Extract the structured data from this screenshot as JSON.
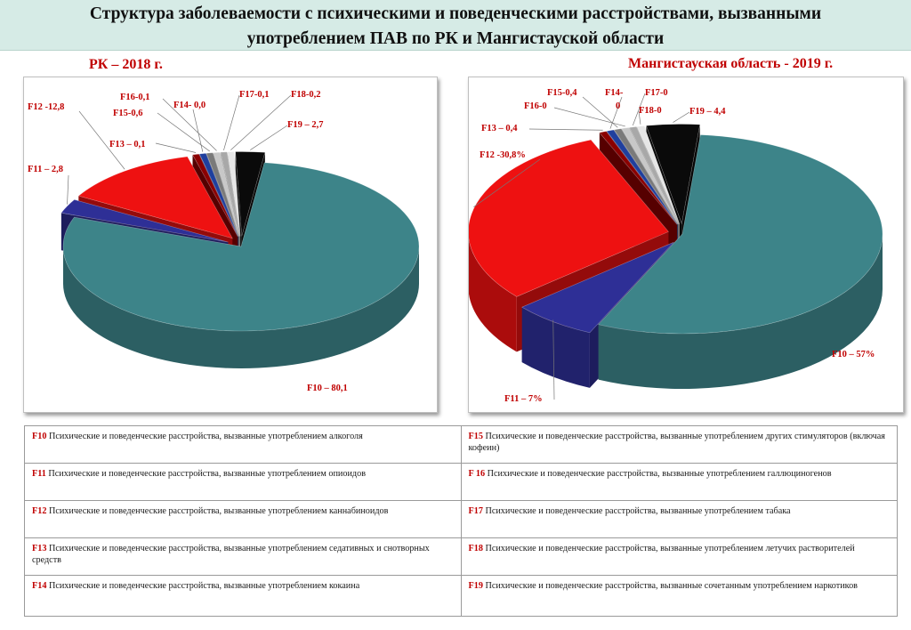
{
  "title_line1": "Структура заболеваемости с психическими и поведенческими расстройствами, вызванными",
  "title_line2": "употреблением ПАВ по РК и Мангистауской области",
  "colors": {
    "F10": "#3d8489",
    "F11": "#2e2f96",
    "F12": "#ee1111",
    "F13": "#8b0000",
    "F14": "#1f3f9e",
    "F15": "#7a7a7a",
    "F16": "#c8c8c8",
    "F17": "#a8a8a8",
    "F18": "#e6e6e6",
    "F19": "#0a0a0a"
  },
  "chart_data": [
    {
      "type": "pie",
      "title": "РК – 2018 г.",
      "categories": [
        "F10",
        "F11",
        "F12",
        "F13",
        "F14",
        "F15",
        "F16",
        "F17",
        "F18",
        "F19"
      ],
      "values": [
        80.1,
        2.8,
        12.8,
        0.1,
        0.0,
        0.6,
        0.1,
        0.1,
        0.2,
        2.7
      ],
      "labels": [
        "F10 – 80,1",
        "F11 – 2,8",
        "F12 -12,8",
        "F13 – 0,1",
        "F14- 0,0",
        "F15-0,6",
        "F16-0,1",
        "F17-0,1",
        "F18-0,2",
        "F19 – 2,7"
      ],
      "exploded": [
        "F11",
        "F12",
        "F13",
        "F14",
        "F15",
        "F16",
        "F17",
        "F18",
        "F19"
      ]
    },
    {
      "type": "pie",
      "title": "Мангистауская область - 2019 г.",
      "categories": [
        "F10",
        "F11",
        "F12",
        "F13",
        "F14",
        "F15",
        "F16",
        "F17",
        "F18",
        "F19"
      ],
      "values": [
        57,
        7,
        30.8,
        0.4,
        0,
        0.4,
        0,
        0,
        0,
        4.4
      ],
      "labels": [
        "F10 – 57%",
        "F11 – 7%",
        "F12 -30,8%",
        "F13 – 0,4",
        "F14-",
        "F15-0,4",
        "F16-0",
        "F17-0",
        "F18-0",
        "F19 – 4,4"
      ],
      "label_extra": {
        "F14": "0"
      },
      "exploded": [
        "F11",
        "F12",
        "F13",
        "F14",
        "F15",
        "F16",
        "F17",
        "F18",
        "F19"
      ]
    }
  ],
  "legend": [
    {
      "left": {
        "code": "F10",
        "text": " Психические и поведенческие расстройства, вызванные  употреблением алкоголя"
      },
      "right": {
        "code": "F15",
        "text": " Психические и поведенческие расстройства, вызванные употреблением других стимуляторов  (включая кофеин)"
      }
    },
    {
      "left": {
        "code": "F11",
        "text": "  Психические и поведенческие расстройства, вызванные употреблением опиоидов"
      },
      "right": {
        "code": "F 16",
        "text": " Психические и поведенческие расстройства, вызванные употреблением галлюциногенов"
      }
    },
    {
      "left": {
        "code": "F12",
        "text": "  Психические и поведенческие расстройства, вызванные употреблением каннабиноидов"
      },
      "right": {
        "code": "F17",
        "text": " Психические и поведенческие расстройства, вызванные употреблением табака"
      }
    },
    {
      "left": {
        "code": "F13",
        "text": " Психические и поведенческие расстройства, вызванные употреблением седативных  и снотворных средств"
      },
      "right": {
        "code": "F18",
        "text": " Психические и поведенческие расстройства, вызванные употреблением летучих растворителей"
      }
    },
    {
      "left": {
        "code": "F14",
        "text": " Психические и поведенческие расстройства, вызванные употреблением кокаина"
      },
      "right": {
        "code": "F19",
        "text": " Психические и поведенческие расстройства, вызванные  сочетанным употреблением наркотиков"
      }
    }
  ]
}
